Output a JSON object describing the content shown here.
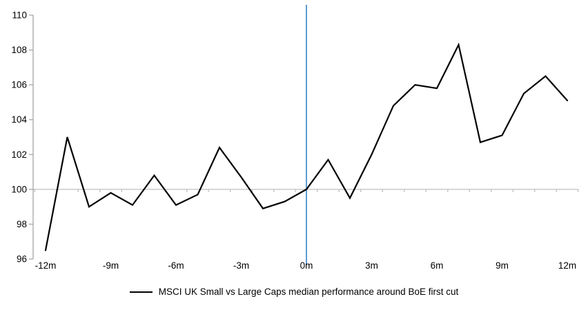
{
  "chart_data": {
    "type": "line",
    "title": "",
    "xlabel": "",
    "ylabel": "",
    "x": [
      -12,
      -11,
      -10,
      -9,
      -8,
      -7,
      -6,
      -5,
      -4,
      -3,
      -2,
      -1,
      0,
      1,
      2,
      3,
      4,
      5,
      6,
      7,
      8,
      9,
      10,
      11,
      12
    ],
    "series": [
      {
        "name": "MSCI UK Small vs Large Caps median performance around BoE first cut",
        "color": "#000000",
        "values": [
          96.5,
          103.0,
          99.0,
          99.8,
          99.1,
          100.8,
          99.1,
          99.7,
          102.4,
          100.7,
          98.9,
          99.3,
          100.0,
          101.7,
          99.5,
          102.0,
          104.8,
          106.0,
          105.8,
          108.3,
          102.7,
          103.1,
          105.5,
          106.5,
          105.1
        ]
      }
    ],
    "ylim": [
      96,
      110
    ],
    "yticks": [
      110,
      108,
      106,
      104,
      102,
      100,
      98,
      96
    ],
    "ytick_labels": [
      "110",
      "108",
      "106",
      "104",
      "102",
      "100",
      "98",
      "96"
    ],
    "xticks": [
      -12,
      -9,
      -6,
      -3,
      0,
      3,
      6,
      9,
      12
    ],
    "xtick_labels": [
      "-12m",
      "-9m",
      "-6m",
      "-3m",
      "0m",
      "3m",
      "6m",
      "9m",
      "12m"
    ],
    "baseline_value": 100,
    "event_line_x": 0,
    "grid": "baseline-only",
    "legend_position": "bottom-center",
    "colors": {
      "series_line": "#000000",
      "event_line": "#5B9BD5",
      "baseline_line": "#BFBFBF",
      "axis": "#A6A6A6",
      "text": "#000000",
      "background": "#FFFFFF"
    }
  }
}
